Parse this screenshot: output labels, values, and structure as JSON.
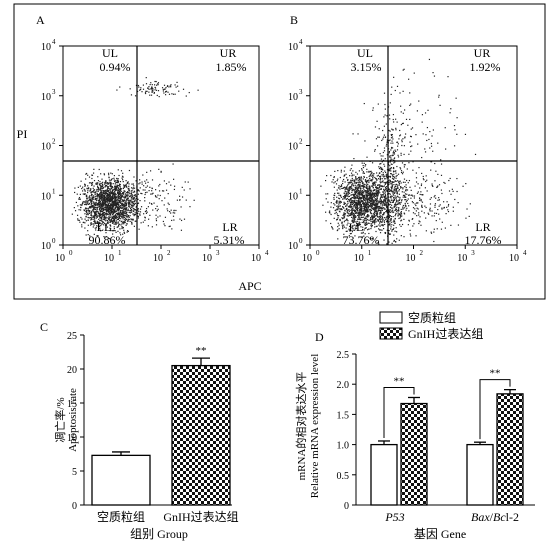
{
  "chart_data": [
    {
      "panel": "A",
      "type": "scatter",
      "xlabel": "APC",
      "ylabel": "PI",
      "xscale": "log",
      "yscale": "log",
      "xlim": [
        1,
        10000
      ],
      "ylim": [
        1,
        10000
      ],
      "x_ticks": [
        "10",
        "10",
        "10",
        "10",
        "10"
      ],
      "x_tick_powers": [
        "0",
        "1",
        "2",
        "3",
        "4"
      ],
      "y_ticks": [
        "10",
        "10",
        "10",
        "10",
        "10"
      ],
      "y_tick_powers": [
        "0",
        "1",
        "2",
        "3",
        "4"
      ],
      "gate": {
        "x": 40,
        "y": 50
      },
      "quadrants": [
        {
          "name": "UL",
          "percent": "0.94%"
        },
        {
          "name": "UR",
          "percent": "1.85%"
        },
        {
          "name": "LL",
          "percent": "90.86%"
        },
        {
          "name": "LR",
          "percent": "5.31%"
        }
      ]
    },
    {
      "panel": "B",
      "type": "scatter",
      "xscale": "log",
      "yscale": "log",
      "xlim": [
        1,
        10000
      ],
      "ylim": [
        1,
        10000
      ],
      "x_ticks": [
        "10",
        "10",
        "10",
        "10",
        "10"
      ],
      "x_tick_powers": [
        "0",
        "1",
        "2",
        "3",
        "4"
      ],
      "y_ticks": [
        "10",
        "10",
        "10",
        "10",
        "10"
      ],
      "y_tick_powers": [
        "0",
        "1",
        "2",
        "3",
        "4"
      ],
      "gate": {
        "x": 40,
        "y": 50
      },
      "quadrants": [
        {
          "name": "UL",
          "percent": "3.15%"
        },
        {
          "name": "UR",
          "percent": "1.92%"
        },
        {
          "name": "LL",
          "percent": "73.76%"
        },
        {
          "name": "LR",
          "percent": "17.76%"
        }
      ]
    },
    {
      "panel": "C",
      "type": "bar",
      "categories": [
        "空质粒组",
        "GnIH过表达组"
      ],
      "values": [
        7.3,
        20.5
      ],
      "errors": [
        0.5,
        1.1
      ],
      "significance": [
        "",
        "**"
      ],
      "xlabel": "组别 Group",
      "ylabel_line1": "凋亡率/%",
      "ylabel_line2": "Apoptosis rate",
      "ylim": [
        0,
        25
      ],
      "y_ticks": [
        0,
        5,
        10,
        15,
        20,
        25
      ],
      "bar_patterns": [
        "white",
        "checker"
      ]
    },
    {
      "panel": "D",
      "type": "bar",
      "categories": [
        "P53",
        "Bax/Bcl-2"
      ],
      "series": [
        {
          "name": "空质粒组",
          "values": [
            1.0,
            1.0
          ],
          "errors": [
            0.06,
            0.04
          ],
          "pattern": "white"
        },
        {
          "name": "GnIH过表达组",
          "values": [
            1.68,
            1.84
          ],
          "errors": [
            0.1,
            0.07
          ],
          "pattern": "checker"
        }
      ],
      "significance": [
        "**",
        "**"
      ],
      "xlabel": "基因 Gene",
      "ylabel_line1": "mRNA的相对表达水平",
      "ylabel_line2": "Relative mRNA expression level",
      "ylim": [
        0,
        2.5
      ],
      "y_ticks": [
        "0",
        "0.5",
        "1.0",
        "1.5",
        "2.0",
        "2.5"
      ]
    }
  ]
}
